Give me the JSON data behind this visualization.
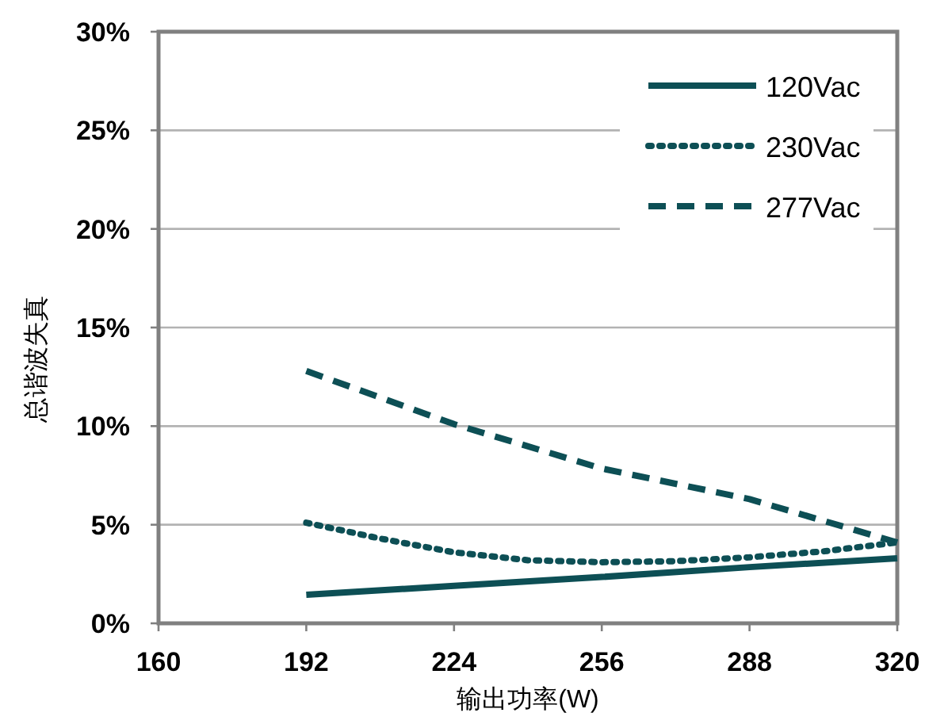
{
  "chart_data": {
    "type": "line",
    "xlabel": "输出功率(W)",
    "ylabel": "总谐波失真",
    "xlim": [
      160,
      320
    ],
    "xticks": [
      160,
      192,
      224,
      256,
      288,
      320
    ],
    "ylim": [
      0,
      30
    ],
    "yticks": [
      {
        "value": 0,
        "label": "0%"
      },
      {
        "value": 5,
        "label": "5%"
      },
      {
        "value": 10,
        "label": "10%"
      },
      {
        "value": 15,
        "label": "15%"
      },
      {
        "value": 20,
        "label": "20%"
      },
      {
        "value": 25,
        "label": "25%"
      },
      {
        "value": 30,
        "label": "30%"
      }
    ],
    "grid": "y",
    "legend": "top right",
    "series": [
      {
        "name": "120Vac",
        "color": "#0d4f55",
        "line_style": "solid",
        "x": [
          192,
          224,
          256,
          288,
          320
        ],
        "values": [
          1.45,
          1.9,
          2.35,
          2.85,
          3.3
        ]
      },
      {
        "name": "230Vac",
        "color": "#0d4f55",
        "line_style": "dotted",
        "x": [
          192,
          208,
          224,
          240,
          256,
          272,
          288,
          304,
          320
        ],
        "values": [
          5.1,
          4.3,
          3.6,
          3.2,
          3.1,
          3.15,
          3.35,
          3.65,
          4.1
        ]
      },
      {
        "name": "277Vac",
        "color": "#0d4f55",
        "line_style": "dashed",
        "x": [
          192,
          224,
          256,
          288,
          320
        ],
        "values": [
          12.8,
          10.1,
          7.85,
          6.3,
          4.1
        ]
      }
    ]
  }
}
